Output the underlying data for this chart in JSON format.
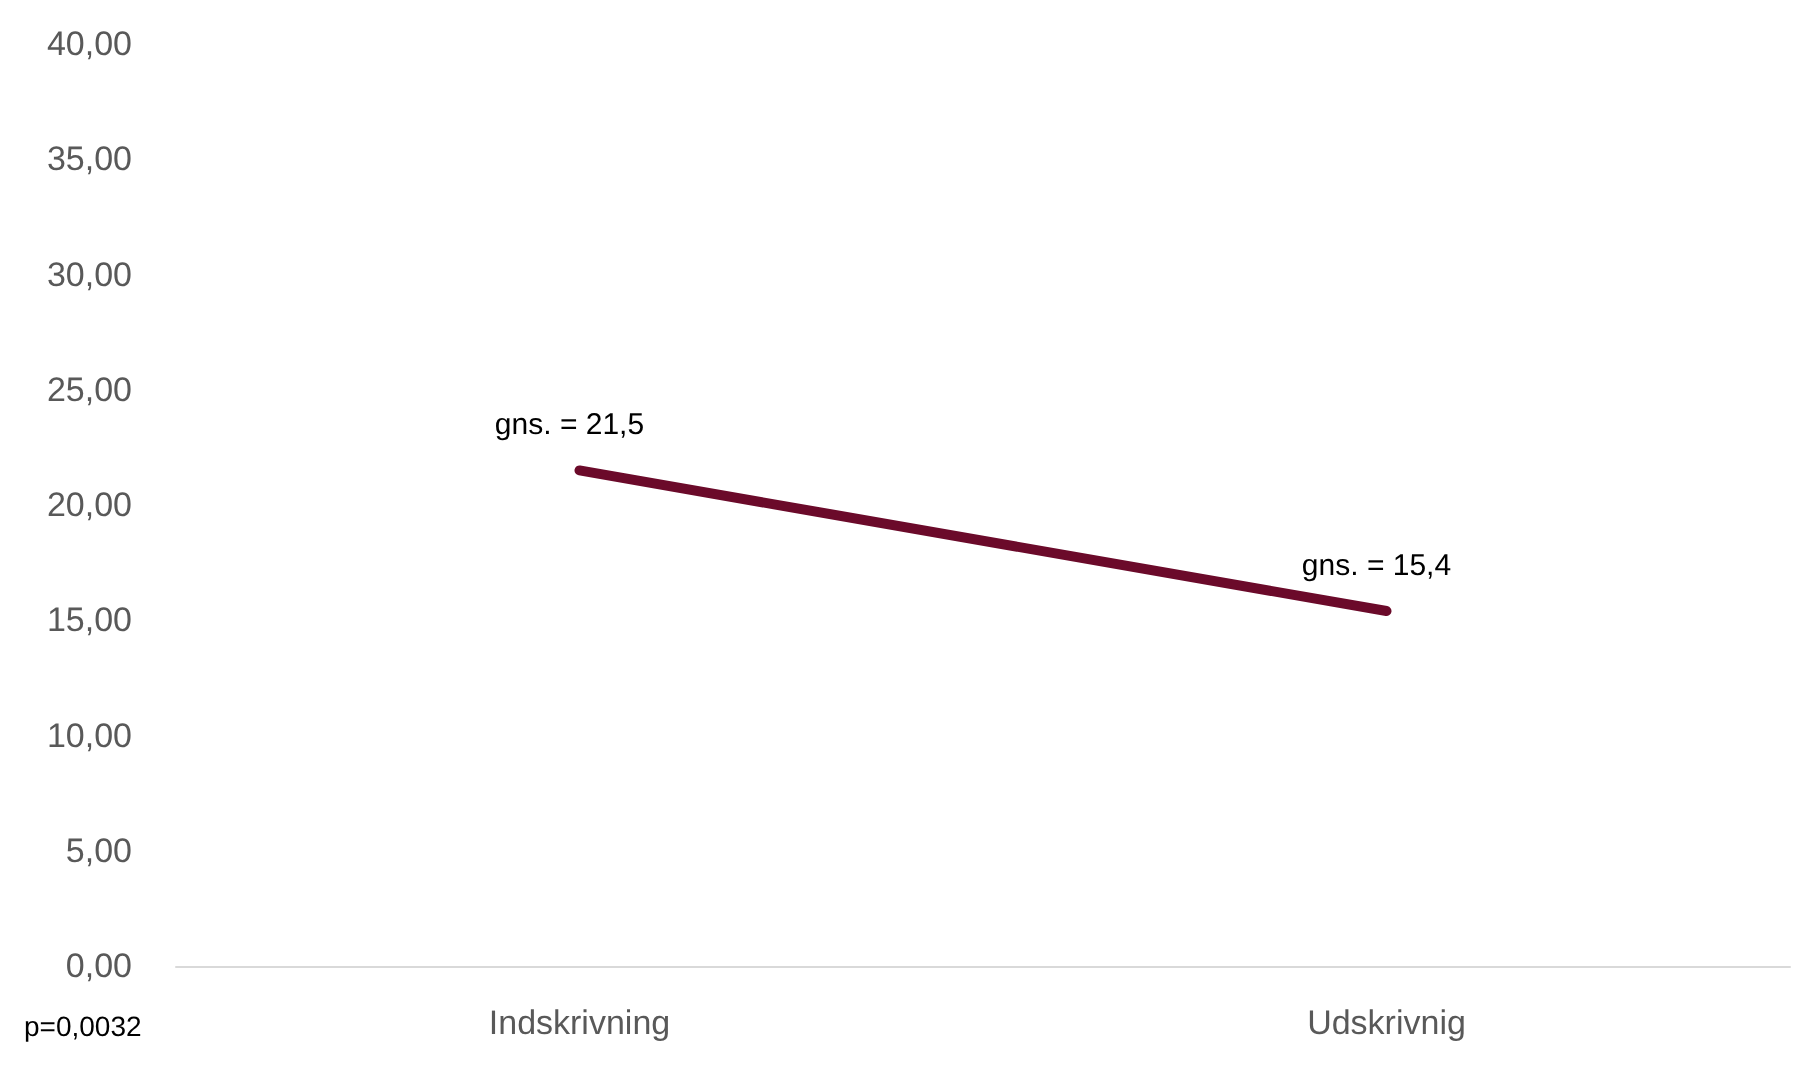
{
  "chart_data": {
    "type": "line",
    "categories": [
      "Indskrivning",
      "Udskrivnig"
    ],
    "series": [
      {
        "color": "#6b0a2a",
        "values": [
          21.5,
          15.4
        ],
        "value_labels": [
          "gns. = 21,5",
          "gns. = 15,4"
        ]
      }
    ],
    "ylim": [
      0,
      40
    ],
    "yticks": [
      {
        "value": 0,
        "label": "0,00"
      },
      {
        "value": 5,
        "label": "5,00"
      },
      {
        "value": 10,
        "label": "10,00"
      },
      {
        "value": 15,
        "label": "15,00"
      },
      {
        "value": 20,
        "label": "20,00"
      },
      {
        "value": 25,
        "label": "25,00"
      },
      {
        "value": 30,
        "label": "30,00"
      },
      {
        "value": 35,
        "label": "35,00"
      },
      {
        "value": 40,
        "label": "40,00"
      }
    ],
    "grid": false,
    "marker": "none",
    "line_style": "solid",
    "annotations": [
      "p=0,0032"
    ]
  }
}
